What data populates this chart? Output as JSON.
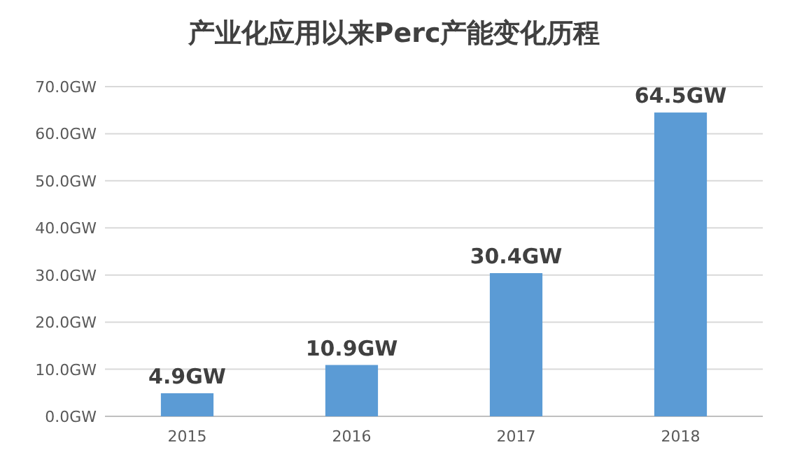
{
  "chart_data": {
    "type": "bar",
    "title": "产业化应用以来Perc产能变化历程",
    "categories": [
      "2015",
      "2016",
      "2017",
      "2018"
    ],
    "values": [
      4.9,
      10.9,
      30.4,
      64.5
    ],
    "value_labels": [
      "4.9GW",
      "10.9GW",
      "30.4GW",
      "64.5GW"
    ],
    "color": "#5b9bd5",
    "ylim": [
      0,
      70
    ],
    "yticks": [
      {
        "value": 0,
        "label": "0.0GW"
      },
      {
        "value": 10,
        "label": "10.0GW"
      },
      {
        "value": 20,
        "label": "20.0GW"
      },
      {
        "value": 30,
        "label": "30.0GW"
      },
      {
        "value": 40,
        "label": "40.0GW"
      },
      {
        "value": 50,
        "label": "50.0GW"
      },
      {
        "value": 60,
        "label": "60.0GW"
      },
      {
        "value": 70,
        "label": "70.0GW"
      }
    ],
    "grid": "y"
  }
}
